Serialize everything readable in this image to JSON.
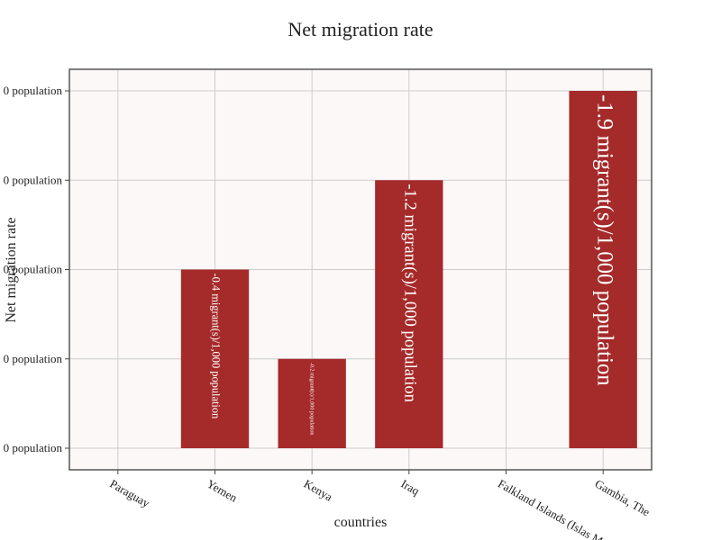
{
  "chart_data": {
    "type": "bar",
    "title": "Net migration rate",
    "xlabel": "countries",
    "ylabel": "Net migration rate",
    "categories": [
      "Paraguay",
      "Yemen",
      "Kenya",
      "Iraq",
      "Falkland Islands (Islas Malvinas)",
      "Gambia, The"
    ],
    "values": [
      0,
      -0.4,
      -0.2,
      -1.2,
      0,
      -1.9
    ],
    "bar_labels": [
      "",
      "-0.4 migrant(s)/1,000 population",
      "-0.2 migrant(s)/1,000 population",
      "-1.2 migrant(s)/1,000 population",
      "",
      "-1.9 migrant(s)/1,000 population"
    ],
    "y_ticks": [
      "0 population",
      "0 population",
      "0 population",
      "0 population",
      "0 population"
    ],
    "colors": {
      "bar": "#a52a2a",
      "plot_bg": "#fdf8f8",
      "frame": "#555555"
    },
    "grid": true
  }
}
